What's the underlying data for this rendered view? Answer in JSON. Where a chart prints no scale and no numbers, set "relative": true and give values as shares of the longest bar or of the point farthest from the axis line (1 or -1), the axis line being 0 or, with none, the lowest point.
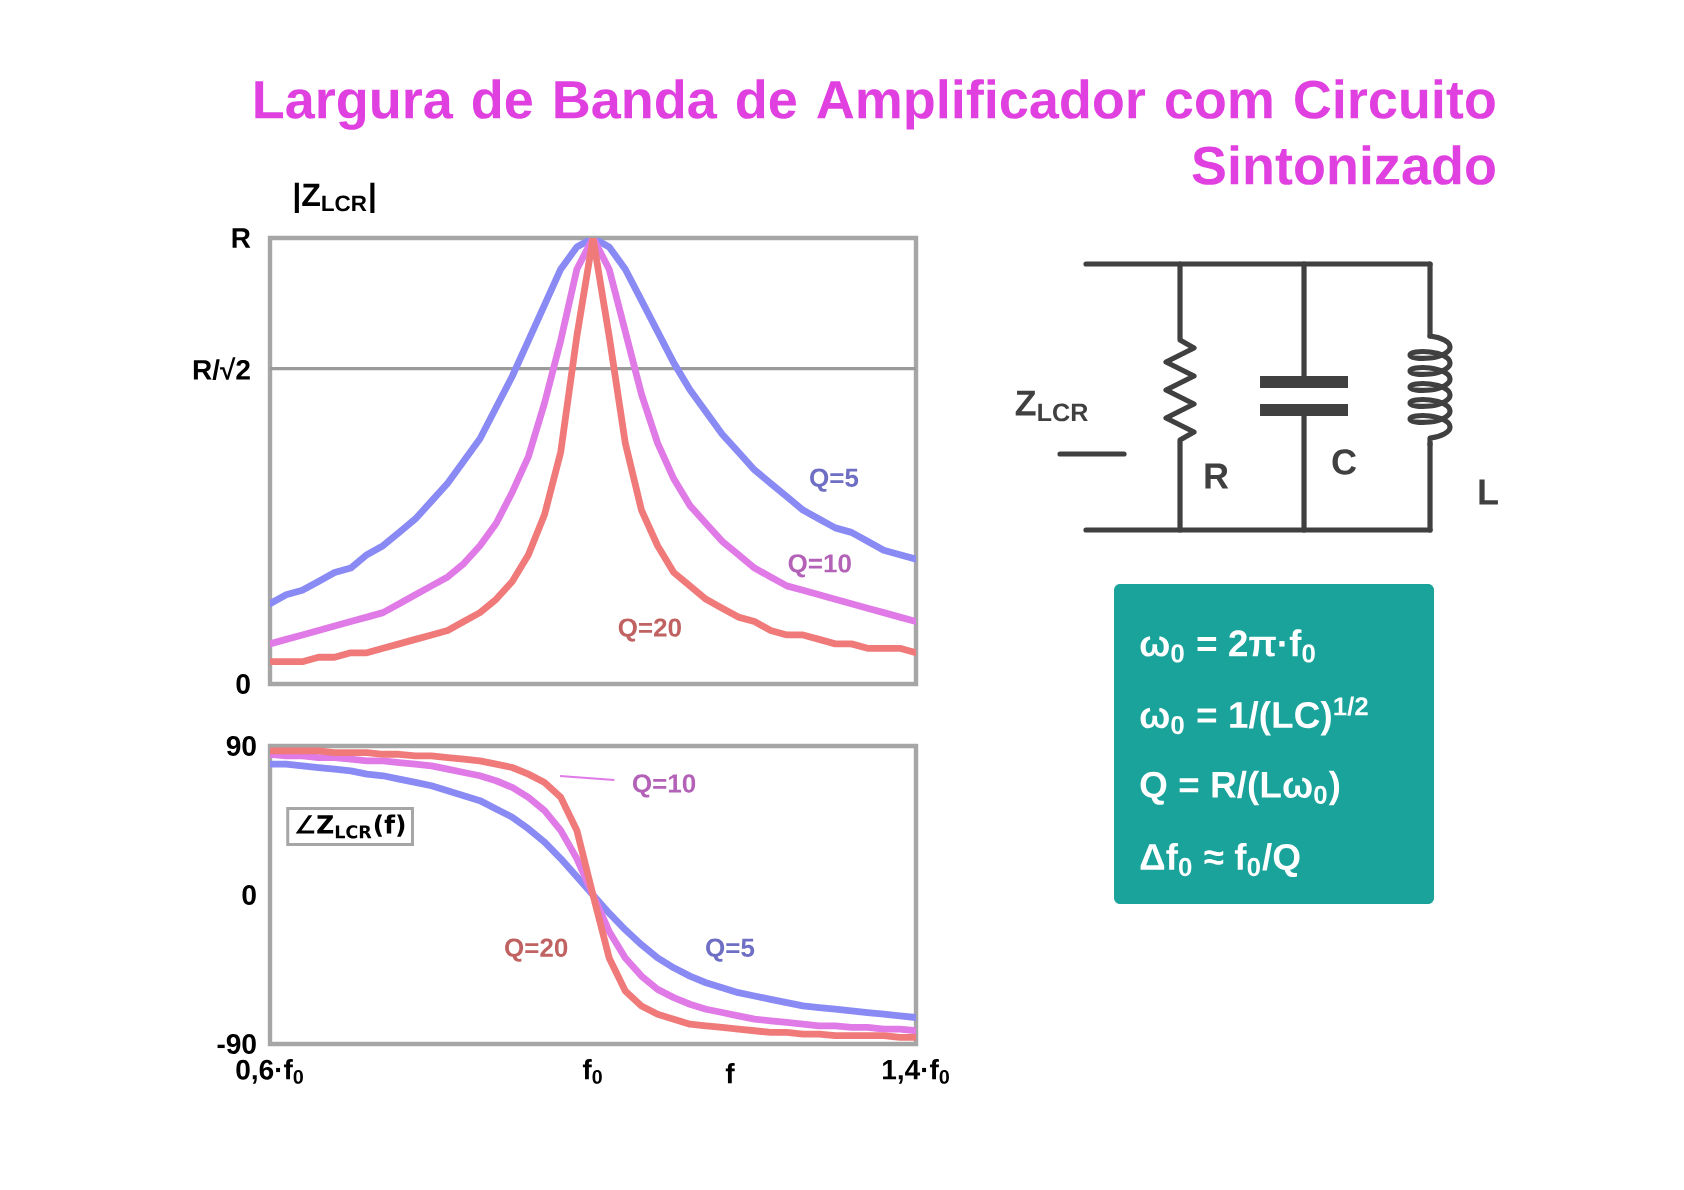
{
  "chart_data": [
    {
      "type": "line",
      "title": "Largura de Banda de Amplificador com Circuito Sintonizado",
      "ylabel": "|Z$_{LCR}$|",
      "relative": true,
      "categories": [
        null,
        null,
        null,
        null,
        null,
        null,
        null,
        null,
        null,
        null,
        null,
        null,
        null,
        null,
        null,
        null,
        null,
        null,
        null,
        null,
        null,
        null,
        null,
        null,
        null,
        null,
        null,
        null,
        null,
        null,
        null,
        null,
        null,
        null,
        null,
        null,
        null,
        null,
        null,
        null,
        null
      ],
      "marker": "none",
      "line_style": "solid",
      "ref_lines": [
        {
          "axis": "y",
          "value": 0.707,
          "label": "R/√2",
          "color": "#9a9a9a"
        }
      ],
      "annotations": [
        "R",
        "0"
      ],
      "series": [
        {
          "name": "Q=5",
          "color": "#8a8af5",
          "values": [
            0.18,
            0.2,
            0.21,
            0.23,
            0.25,
            0.26,
            0.29,
            0.31,
            0.34,
            0.37,
            0.41,
            0.45,
            0.5,
            0.55,
            0.62,
            0.69,
            0.77,
            0.85,
            0.93,
            0.98,
            1,
            0.98,
            0.93,
            0.86,
            0.79,
            0.72,
            0.66,
            0.61,
            0.56,
            0.52,
            0.48,
            0.45,
            0.42,
            0.39,
            0.37,
            0.35,
            0.34,
            0.32,
            0.3,
            0.29,
            0.28
          ]
        },
        {
          "name": "Q=10",
          "color": "#e07ae6",
          "values": [
            0.09,
            0.1,
            0.11,
            0.12,
            0.13,
            0.14,
            0.15,
            0.16,
            0.18,
            0.2,
            0.22,
            0.24,
            0.27,
            0.31,
            0.36,
            0.43,
            0.51,
            0.63,
            0.77,
            0.93,
            1,
            0.93,
            0.79,
            0.65,
            0.54,
            0.46,
            0.4,
            0.36,
            0.32,
            0.29,
            0.26,
            0.24,
            0.22,
            0.21,
            0.2,
            0.19,
            0.18,
            0.17,
            0.16,
            0.15,
            0.14
          ]
        },
        {
          "name": "Q=20",
          "color": "#f07a7a",
          "values": [
            0.05,
            0.05,
            0.05,
            0.06,
            0.06,
            0.07,
            0.07,
            0.08,
            0.09,
            0.1,
            0.11,
            0.12,
            0.14,
            0.16,
            0.19,
            0.23,
            0.29,
            0.38,
            0.52,
            0.78,
            1,
            0.78,
            0.54,
            0.39,
            0.31,
            0.25,
            0.22,
            0.19,
            0.17,
            0.15,
            0.14,
            0.12,
            0.11,
            0.11,
            0.1,
            0.09,
            0.09,
            0.08,
            0.08,
            0.08,
            0.07
          ]
        }
      ]
    },
    {
      "type": "line",
      "ylabel": "∠Z$_{LCR}$(f)",
      "xlabel": "f",
      "categories": [
        "0,6·f$_{0}$",
        null,
        null,
        null,
        null,
        null,
        null,
        null,
        null,
        null,
        null,
        null,
        null,
        null,
        null,
        null,
        null,
        null,
        null,
        null,
        "f$_{0}$",
        null,
        null,
        null,
        null,
        null,
        null,
        null,
        null,
        null,
        null,
        null,
        null,
        null,
        null,
        null,
        null,
        null,
        null,
        null,
        "1,4·f$_{0}$"
      ],
      "ylim": [
        -90,
        90
      ],
      "yticks": [
        -90,
        0,
        90
      ],
      "marker": "none",
      "line_style": "solid",
      "series": [
        {
          "name": "Q=5",
          "color": "#8a8af5",
          "values": [
            79,
            79,
            78,
            77,
            76,
            75,
            73,
            72,
            70,
            68,
            66,
            63,
            60,
            57,
            52,
            47,
            40,
            32,
            22,
            11,
            0,
            -11,
            -21,
            -30,
            -38,
            -44,
            -49,
            -53,
            -56,
            -59,
            -61,
            -63,
            -65,
            -67,
            -68,
            -69,
            -70,
            -71,
            -72,
            -73,
            -74
          ]
        },
        {
          "name": "Q=10",
          "color": "#e07ae6",
          "values": [
            85,
            84,
            84,
            83,
            83,
            82,
            81,
            81,
            80,
            79,
            78,
            76,
            74,
            72,
            69,
            65,
            59,
            51,
            39,
            22,
            0,
            -22,
            -38,
            -49,
            -57,
            -62,
            -66,
            -69,
            -71,
            -73,
            -75,
            -76,
            -77,
            -78,
            -79,
            -79,
            -80,
            -80,
            -81,
            -81,
            -82
          ]
        },
        {
          "name": "Q=20",
          "color": "#f07a7a",
          "values": [
            87,
            87,
            87,
            87,
            86,
            86,
            86,
            85,
            85,
            84,
            84,
            83,
            82,
            81,
            79,
            77,
            73,
            68,
            59,
            39,
            0,
            -38,
            -58,
            -67,
            -72,
            -75,
            -78,
            -79,
            -80,
            -81,
            -82,
            -83,
            -83,
            -84,
            -84,
            -85,
            -85,
            -85,
            -85,
            -86,
            -86
          ]
        }
      ]
    },
    {
      "type": "other",
      "annotations": [
        "Z$_{LCR}$",
        "R",
        "C",
        "L"
      ]
    },
    {
      "type": "other",
      "color": "#1aa39a",
      "annotations": [
        "ω$_{0}$ = 2π·f$_{0}$",
        "ω$_{0}$ = 1/(LC)$^{1/2}$",
        "Q = R/(Lω$_{0}$)",
        "Δf$_{0}$ ≈ f$_{0}$/Q"
      ]
    }
  ]
}
